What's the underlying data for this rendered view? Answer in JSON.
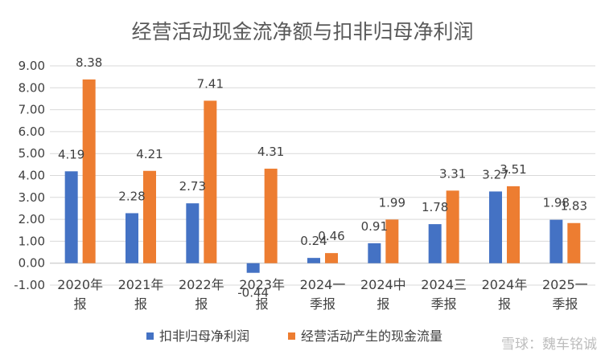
{
  "chart_data": {
    "type": "bar",
    "title": "经营活动现金流净额与扣非归母净利润",
    "categories": [
      [
        "2020年",
        "报"
      ],
      [
        "2021年",
        "报"
      ],
      [
        "2022年",
        "报"
      ],
      [
        "2023年",
        "报"
      ],
      [
        "2024一",
        "季报"
      ],
      [
        "2024中",
        "报"
      ],
      [
        "2024三",
        "季报"
      ],
      [
        "2024年",
        "报"
      ],
      [
        "2025一",
        "季报"
      ]
    ],
    "series": [
      {
        "name": "扣非归母净利润",
        "color": "#4472C4",
        "values": [
          4.19,
          2.28,
          2.73,
          -0.44,
          0.24,
          0.91,
          1.78,
          3.27,
          1.98
        ],
        "labels": [
          "4.19",
          "2.28",
          "2.73",
          "-0.44",
          "0.24",
          "0.91",
          "1.78",
          "3.27",
          "1.98"
        ]
      },
      {
        "name": "经营活动产生的现金流量",
        "color": "#ED7D31",
        "values": [
          8.38,
          4.21,
          7.41,
          4.31,
          0.46,
          1.99,
          3.31,
          3.51,
          1.83
        ],
        "labels": [
          "8.38",
          "4.21",
          "7.41",
          "4.31",
          "0.46",
          "1.99",
          "3.31",
          "3.51",
          "1.83"
        ]
      }
    ],
    "ylim": [
      -1,
      9
    ],
    "yticks": [
      9,
      8,
      7,
      6,
      5,
      4,
      3,
      2,
      1,
      0,
      -1
    ],
    "ytick_labels": [
      "9.00",
      "8.00",
      "7.00",
      "6.00",
      "5.00",
      "4.00",
      "3.00",
      "2.00",
      "1.00",
      "0.00",
      "-1.00"
    ],
    "grid": true,
    "legend": "bottom",
    "xlabel": "",
    "ylabel": ""
  },
  "watermark": "雪球：魏车铭诚"
}
